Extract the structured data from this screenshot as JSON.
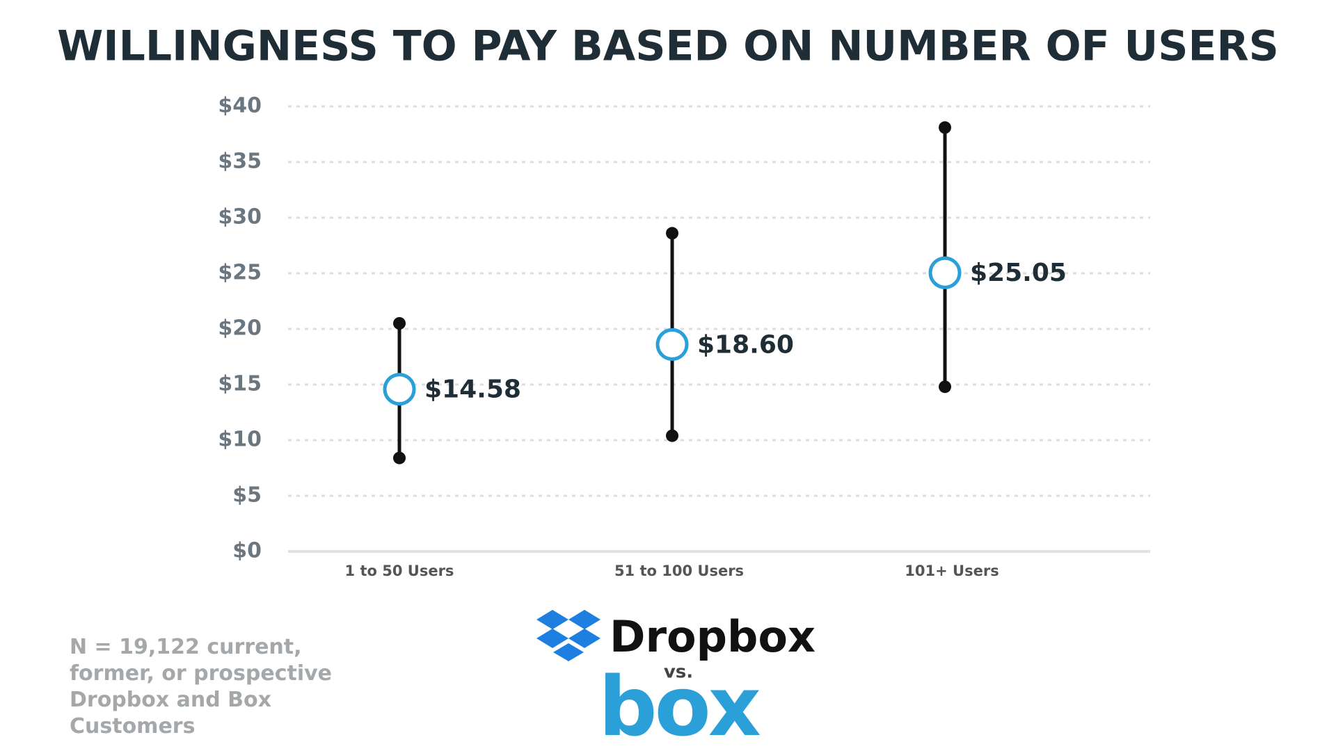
{
  "chart_data": {
    "type": "range",
    "title": "WILLINGNESS TO PAY BASED ON NUMBER OF USERS",
    "categories": [
      "1 to 50 Users",
      "51 to 100 Users",
      "101+ Users"
    ],
    "values": [
      14.58,
      18.6,
      25.05
    ],
    "value_labels": [
      "$14.58",
      "$18.60",
      "$25.05"
    ],
    "low": [
      8.4,
      10.4,
      14.8
    ],
    "high": [
      20.5,
      28.6,
      38.1
    ],
    "color": "#2a9fd8",
    "range_color": "#111111",
    "ylim": [
      0,
      40
    ],
    "yticks": [
      {
        "value": 0,
        "label": "$0"
      },
      {
        "value": 5,
        "label": "$5"
      },
      {
        "value": 10,
        "label": "$10"
      },
      {
        "value": 15,
        "label": "$15"
      },
      {
        "value": 20,
        "label": "$20"
      },
      {
        "value": 25,
        "label": "$25"
      },
      {
        "value": 30,
        "label": "$30"
      },
      {
        "value": 35,
        "label": "$35"
      },
      {
        "value": 40,
        "label": "$40"
      }
    ],
    "grid": true
  },
  "footnote": "N = 19,122 current, former, or prospective Dropbox and Box Customers",
  "logos": {
    "dropbox": "Dropbox",
    "vs": "vs.",
    "box": "box"
  }
}
